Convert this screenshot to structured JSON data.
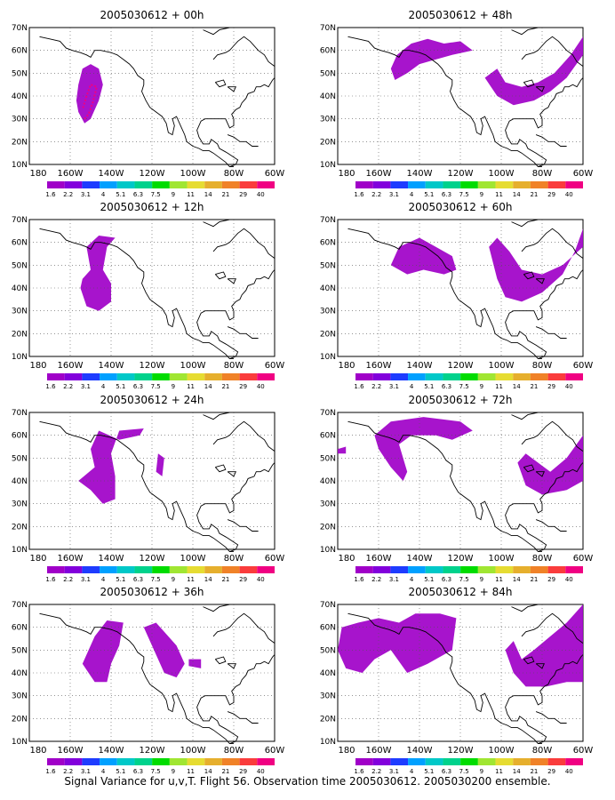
{
  "figure": {
    "footer": "Signal Variance for u,v,T. Flight 56. Observation time 2005030612. 2005030200 ensemble.",
    "x_tick_labels": [
      "180",
      "160W",
      "140W",
      "120W",
      "100W",
      "80W",
      "60W"
    ],
    "y_tick_labels": [
      "10N",
      "20N",
      "30N",
      "40N",
      "50N",
      "60N",
      "70N"
    ],
    "colorbar": {
      "labels": [
        "1.6",
        "2.2",
        "3.1",
        "4",
        "5.1",
        "6.3",
        "7.5",
        "9",
        "11",
        "14",
        "21",
        "29",
        "40"
      ],
      "colors": [
        "#a000c8",
        "#8200dc",
        "#1e3cff",
        "#00a0ff",
        "#00c8c8",
        "#00d28c",
        "#00dc00",
        "#a0e632",
        "#e6dc32",
        "#e6af2d",
        "#f08228",
        "#fa3c3c",
        "#f00082"
      ]
    },
    "panels": [
      {
        "title": "2005030612 + 00h"
      },
      {
        "title": "2005030612 + 48h"
      },
      {
        "title": "2005030612 + 12h"
      },
      {
        "title": "2005030612 + 60h"
      },
      {
        "title": "2005030612 + 24h"
      },
      {
        "title": "2005030612 + 72h"
      },
      {
        "title": "2005030612 + 36h"
      },
      {
        "title": "2005030612 + 84h"
      }
    ]
  }
}
